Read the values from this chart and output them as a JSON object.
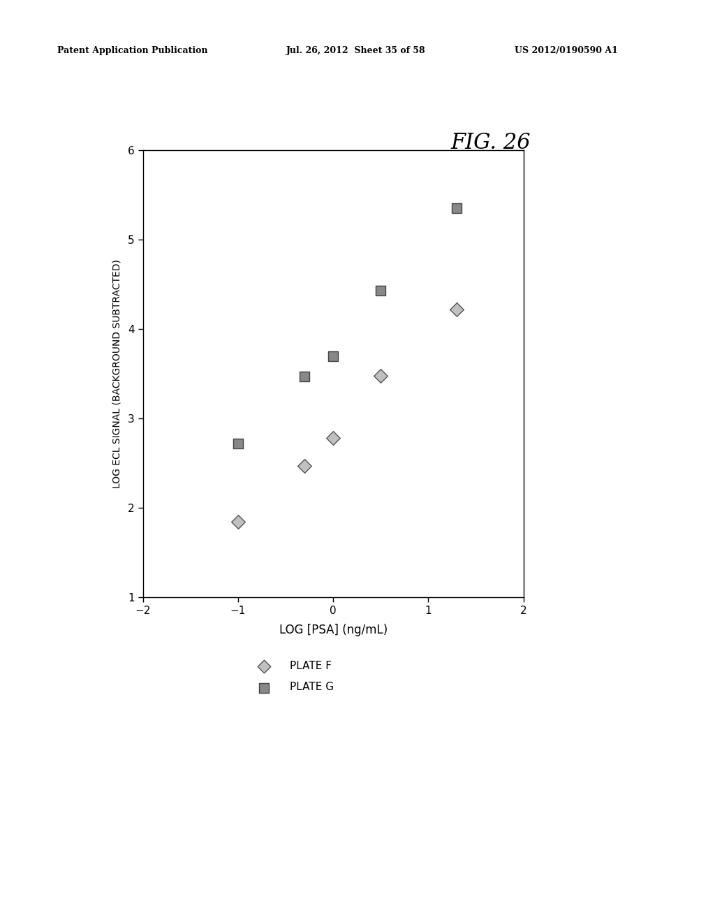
{
  "plate_f_x": [
    -1.0,
    -0.3,
    0.0,
    0.5,
    1.3
  ],
  "plate_f_y": [
    1.85,
    2.47,
    2.78,
    3.48,
    4.22
  ],
  "plate_g_x": [
    -1.0,
    -0.3,
    0.0,
    0.5,
    1.3
  ],
  "plate_g_y": [
    2.72,
    3.47,
    3.7,
    4.43,
    5.35
  ],
  "xlabel": "LOG [PSA] (ng/mL)",
  "ylabel": "LOG ECL SIGNAL (BACKGROUND SUBTRACTED)",
  "title": "FIG. 26",
  "xlim": [
    -2,
    2
  ],
  "ylim": [
    1,
    6
  ],
  "xticks": [
    -2,
    -1,
    0,
    1,
    2
  ],
  "yticks": [
    1,
    2,
    3,
    4,
    5,
    6
  ],
  "legend_plate_f": "PLATE F",
  "legend_plate_g": "PLATE G",
  "bg_color": "#ffffff",
  "header_left": "Patent Application Publication",
  "header_mid": "Jul. 26, 2012  Sheet 35 of 58",
  "header_right": "US 2012/0190590 A1"
}
